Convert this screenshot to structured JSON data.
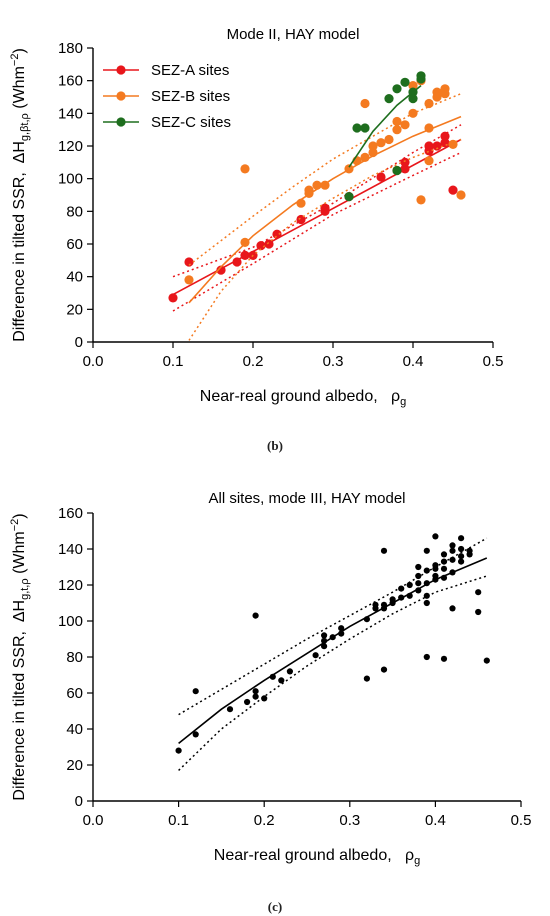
{
  "chart_data": [
    {
      "type": "scatter",
      "panel": "b",
      "caption": "(b)",
      "title": "Mode II, HAY model",
      "xlabel": "Near-real ground albedo,",
      "xlabel_symbol": "ρ",
      "xlabel_sub": "g",
      "ylabel": "Difference in tilted SSR,",
      "ylabel_symbol": "ΔH",
      "ylabel_sub": "g,βt,ρ",
      "ylabel_unit_open": "(Whm",
      "ylabel_unit_sup": "−2",
      "ylabel_unit_close": ")",
      "xlim": [
        0.0,
        0.5
      ],
      "ylim": [
        0,
        180
      ],
      "xticks": [
        "0.0",
        "0.1",
        "0.2",
        "0.3",
        "0.4",
        "0.5"
      ],
      "xtick_values": [
        0.0,
        0.1,
        0.2,
        0.3,
        0.4,
        0.5
      ],
      "yticks": [
        "0",
        "20",
        "40",
        "60",
        "80",
        "100",
        "120",
        "140",
        "160",
        "180"
      ],
      "ytick_values": [
        0,
        20,
        40,
        60,
        80,
        100,
        120,
        140,
        160,
        180
      ],
      "grid": false,
      "legend_position": "top-left",
      "series": [
        {
          "name": "SEZ-A sites",
          "color": "#e8161b",
          "points": [
            [
              0.1,
              27
            ],
            [
              0.12,
              49
            ],
            [
              0.16,
              44
            ],
            [
              0.18,
              49
            ],
            [
              0.19,
              53
            ],
            [
              0.2,
              53
            ],
            [
              0.21,
              59
            ],
            [
              0.22,
              60
            ],
            [
              0.23,
              66
            ],
            [
              0.26,
              75
            ],
            [
              0.29,
              82
            ],
            [
              0.29,
              80
            ],
            [
              0.32,
              89
            ],
            [
              0.36,
              101
            ],
            [
              0.38,
              105
            ],
            [
              0.39,
              106
            ],
            [
              0.39,
              110
            ],
            [
              0.42,
              117
            ],
            [
              0.42,
              120
            ],
            [
              0.43,
              120
            ],
            [
              0.44,
              122
            ],
            [
              0.44,
              126
            ],
            [
              0.45,
              93
            ]
          ],
          "fit": [
            [
              0.1,
              29
            ],
            [
              0.46,
              124
            ]
          ],
          "ci_upper": [
            [
              0.1,
              40
            ],
            [
              0.2,
              58
            ],
            [
              0.3,
              85
            ],
            [
              0.4,
              116
            ],
            [
              0.46,
              133
            ]
          ],
          "ci_lower": [
            [
              0.1,
              19
            ],
            [
              0.2,
              48
            ],
            [
              0.3,
              78
            ],
            [
              0.4,
              102
            ],
            [
              0.46,
              116
            ]
          ]
        },
        {
          "name": "SEZ-B sites",
          "color": "#f47a20",
          "points": [
            [
              0.12,
              38
            ],
            [
              0.19,
              106
            ],
            [
              0.19,
              61
            ],
            [
              0.26,
              85
            ],
            [
              0.27,
              91
            ],
            [
              0.27,
              93
            ],
            [
              0.28,
              96
            ],
            [
              0.29,
              96
            ],
            [
              0.32,
              106
            ],
            [
              0.33,
              111
            ],
            [
              0.34,
              113
            ],
            [
              0.34,
              146
            ],
            [
              0.35,
              116
            ],
            [
              0.35,
              120
            ],
            [
              0.36,
              122
            ],
            [
              0.37,
              124
            ],
            [
              0.38,
              130
            ],
            [
              0.38,
              135
            ],
            [
              0.39,
              133
            ],
            [
              0.4,
              140
            ],
            [
              0.4,
              157
            ],
            [
              0.41,
              87
            ],
            [
              0.41,
              160
            ],
            [
              0.42,
              111
            ],
            [
              0.42,
              131
            ],
            [
              0.42,
              146
            ],
            [
              0.43,
              150
            ],
            [
              0.43,
              153
            ],
            [
              0.44,
              152
            ],
            [
              0.44,
              155
            ],
            [
              0.45,
              121
            ],
            [
              0.46,
              90
            ]
          ],
          "fit": [
            [
              0.12,
              24
            ],
            [
              0.16,
              46
            ],
            [
              0.2,
              65
            ],
            [
              0.25,
              84
            ],
            [
              0.3,
              100
            ],
            [
              0.35,
              114
            ],
            [
              0.4,
              126
            ],
            [
              0.46,
              138
            ]
          ],
          "ci_upper": [
            [
              0.12,
              47
            ],
            [
              0.16,
              62
            ],
            [
              0.2,
              77
            ],
            [
              0.25,
              95
            ],
            [
              0.3,
              112
            ],
            [
              0.35,
              126
            ],
            [
              0.4,
              140
            ],
            [
              0.46,
              152
            ]
          ],
          "ci_lower": [
            [
              0.12,
              1
            ],
            [
              0.16,
              31
            ],
            [
              0.2,
              53
            ],
            [
              0.25,
              73
            ],
            [
              0.3,
              88
            ],
            [
              0.35,
              102
            ],
            [
              0.4,
              113
            ],
            [
              0.46,
              124
            ]
          ]
        },
        {
          "name": "SEZ-C sites",
          "color": "#1e6e1e",
          "points": [
            [
              0.32,
              89
            ],
            [
              0.33,
              131
            ],
            [
              0.34,
              131
            ],
            [
              0.37,
              149
            ],
            [
              0.38,
              155
            ],
            [
              0.38,
              105
            ],
            [
              0.39,
              159
            ],
            [
              0.4,
              153
            ],
            [
              0.4,
              149
            ],
            [
              0.41,
              161
            ],
            [
              0.41,
              163
            ]
          ],
          "fit": [
            [
              0.32,
              107
            ],
            [
              0.35,
              129
            ],
            [
              0.38,
              145
            ],
            [
              0.41,
              157
            ]
          ]
        }
      ]
    },
    {
      "type": "scatter",
      "panel": "c",
      "caption": "(c)",
      "title": "All sites, mode III, HAY model",
      "xlabel": "Near-real ground albedo,",
      "xlabel_symbol": "ρ",
      "xlabel_sub": "g",
      "ylabel": "Difference in tilted SSR,",
      "ylabel_symbol": "ΔH",
      "ylabel_sub": "g,t,ρ",
      "ylabel_unit_open": "(Whm",
      "ylabel_unit_sup": "−2",
      "ylabel_unit_close": ")",
      "xlim": [
        0.0,
        0.5
      ],
      "ylim": [
        0,
        160
      ],
      "xticks": [
        "0.0",
        "0.1",
        "0.2",
        "0.3",
        "0.4",
        "0.5"
      ],
      "xtick_values": [
        0.0,
        0.1,
        0.2,
        0.3,
        0.4,
        0.5
      ],
      "yticks": [
        "0",
        "20",
        "40",
        "60",
        "80",
        "100",
        "120",
        "140",
        "160"
      ],
      "ytick_values": [
        0,
        20,
        40,
        60,
        80,
        100,
        120,
        140,
        160
      ],
      "grid": false,
      "legend_position": "none",
      "series": [
        {
          "name": "",
          "color": "#000000",
          "points": [
            [
              0.1,
              28
            ],
            [
              0.12,
              37
            ],
            [
              0.12,
              61
            ],
            [
              0.16,
              51
            ],
            [
              0.18,
              55
            ],
            [
              0.19,
              58
            ],
            [
              0.19,
              61
            ],
            [
              0.19,
              103
            ],
            [
              0.2,
              57
            ],
            [
              0.21,
              69
            ],
            [
              0.22,
              67
            ],
            [
              0.23,
              72
            ],
            [
              0.26,
              81
            ],
            [
              0.27,
              86
            ],
            [
              0.27,
              89
            ],
            [
              0.27,
              92
            ],
            [
              0.28,
              91
            ],
            [
              0.29,
              93
            ],
            [
              0.29,
              96
            ],
            [
              0.32,
              68
            ],
            [
              0.32,
              101
            ],
            [
              0.33,
              107
            ],
            [
              0.33,
              109
            ],
            [
              0.34,
              73
            ],
            [
              0.34,
              107
            ],
            [
              0.34,
              109
            ],
            [
              0.34,
              139
            ],
            [
              0.35,
              110
            ],
            [
              0.35,
              112
            ],
            [
              0.36,
              113
            ],
            [
              0.36,
              118
            ],
            [
              0.37,
              114
            ],
            [
              0.37,
              120
            ],
            [
              0.38,
              117
            ],
            [
              0.38,
              121
            ],
            [
              0.38,
              125
            ],
            [
              0.38,
              130
            ],
            [
              0.39,
              80
            ],
            [
              0.39,
              110
            ],
            [
              0.39,
              114
            ],
            [
              0.39,
              121
            ],
            [
              0.39,
              128
            ],
            [
              0.39,
              139
            ],
            [
              0.4,
              123
            ],
            [
              0.4,
              125
            ],
            [
              0.4,
              129
            ],
            [
              0.4,
              131
            ],
            [
              0.4,
              147
            ],
            [
              0.41,
              79
            ],
            [
              0.41,
              124
            ],
            [
              0.41,
              129
            ],
            [
              0.41,
              133
            ],
            [
              0.41,
              137
            ],
            [
              0.42,
              107
            ],
            [
              0.42,
              127
            ],
            [
              0.42,
              134
            ],
            [
              0.42,
              139
            ],
            [
              0.42,
              142
            ],
            [
              0.43,
              133
            ],
            [
              0.43,
              136
            ],
            [
              0.43,
              140
            ],
            [
              0.43,
              146
            ],
            [
              0.44,
              137
            ],
            [
              0.44,
              139
            ],
            [
              0.45,
              105
            ],
            [
              0.45,
              116
            ],
            [
              0.46,
              78
            ]
          ],
          "fit": [
            [
              0.1,
              32
            ],
            [
              0.15,
              51
            ],
            [
              0.2,
              67
            ],
            [
              0.25,
              82
            ],
            [
              0.3,
              97
            ],
            [
              0.35,
              110
            ],
            [
              0.4,
              123
            ],
            [
              0.46,
              135
            ]
          ],
          "ci_upper": [
            [
              0.1,
              48
            ],
            [
              0.15,
              62
            ],
            [
              0.2,
              76
            ],
            [
              0.25,
              90
            ],
            [
              0.3,
              103
            ],
            [
              0.35,
              116
            ],
            [
              0.4,
              130
            ],
            [
              0.46,
              146
            ]
          ],
          "ci_lower": [
            [
              0.1,
              17
            ],
            [
              0.15,
              40
            ],
            [
              0.2,
              58
            ],
            [
              0.25,
              75
            ],
            [
              0.3,
              90
            ],
            [
              0.35,
              104
            ],
            [
              0.4,
              116
            ],
            [
              0.46,
              125
            ]
          ]
        }
      ]
    }
  ]
}
